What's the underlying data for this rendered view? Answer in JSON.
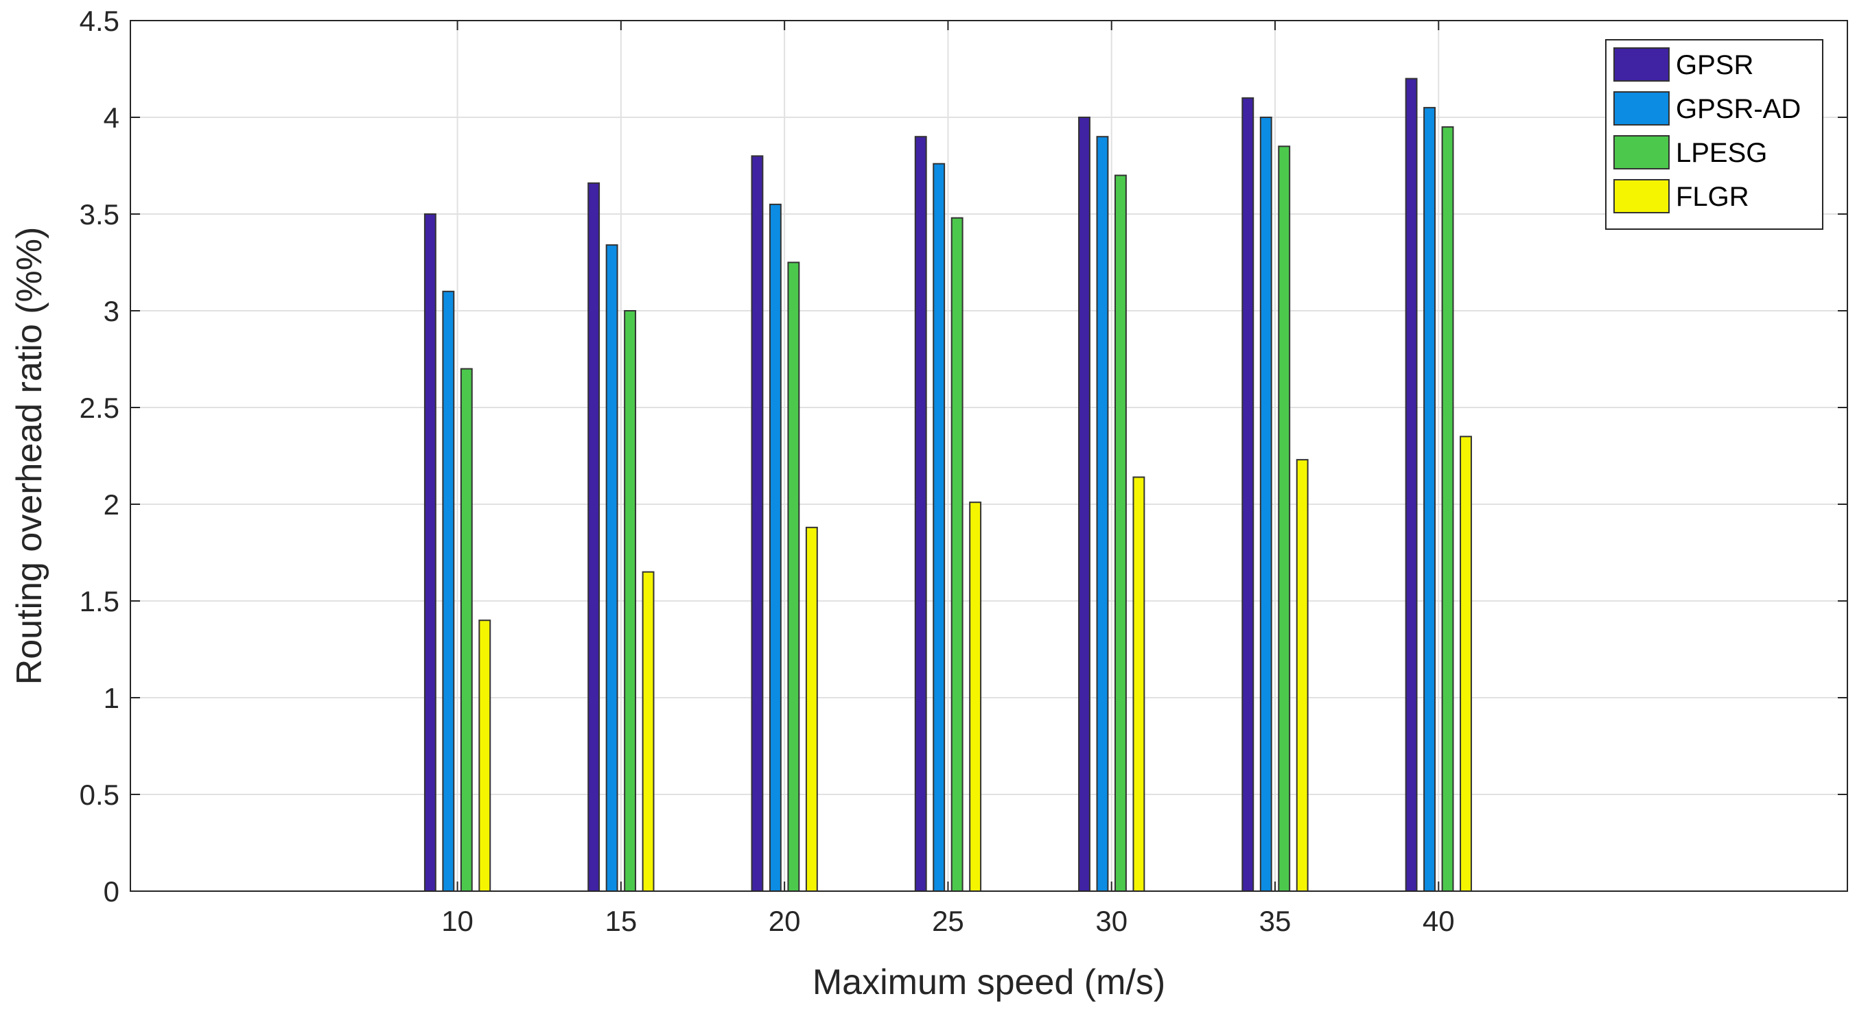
{
  "chart_data": {
    "type": "bar",
    "title": "",
    "xlabel": "Maximum speed (m/s)",
    "ylabel": "Routing overhead ratio (%%)",
    "categories": [
      "10",
      "15",
      "20",
      "25",
      "30",
      "35",
      "40"
    ],
    "xlim": [
      0,
      52.5
    ],
    "ylim": [
      0,
      4.5
    ],
    "yticks": [
      "0",
      "0.5",
      "1",
      "1.5",
      "2",
      "2.5",
      "3",
      "3.5",
      "4",
      "4.5"
    ],
    "grid": true,
    "legend_position": "top-right",
    "series": [
      {
        "name": "GPSR",
        "color": "#3f23a3",
        "values": [
          3.5,
          3.66,
          3.8,
          3.9,
          4.0,
          4.1,
          4.2
        ]
      },
      {
        "name": "GPSR-AD",
        "color": "#0c8ce3",
        "values": [
          3.1,
          3.34,
          3.55,
          3.76,
          3.9,
          4.0,
          4.05
        ]
      },
      {
        "name": "LPESG",
        "color": "#4cc94c",
        "values": [
          2.7,
          3.0,
          3.25,
          3.48,
          3.7,
          3.85,
          3.95
        ]
      },
      {
        "name": "FLGR",
        "color": "#f5f500",
        "values": [
          1.4,
          1.65,
          1.88,
          2.01,
          2.14,
          2.23,
          2.35
        ]
      }
    ]
  }
}
